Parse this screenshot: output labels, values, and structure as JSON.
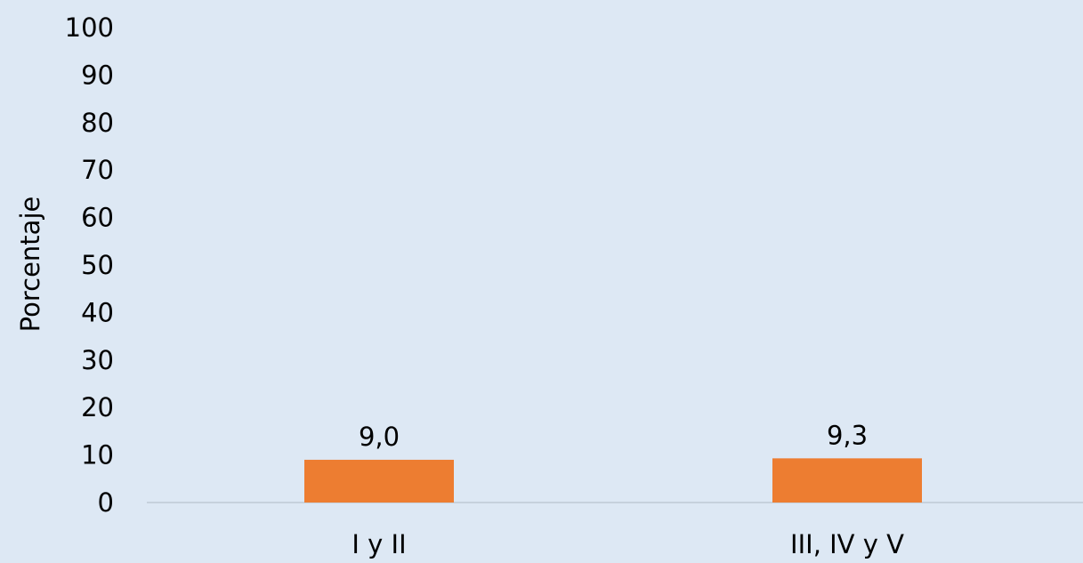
{
  "chart_data": {
    "type": "bar",
    "categories": [
      "I y II",
      "III, IV y V"
    ],
    "values": [
      9.0,
      9.3
    ],
    "value_labels": [
      "9,0",
      "9,3"
    ],
    "ylabel": "Porcentaje",
    "xlabel": "",
    "ylim": [
      0,
      100
    ],
    "y_ticks": [
      "0",
      "10",
      "20",
      "30",
      "40",
      "50",
      "60",
      "70",
      "80",
      "90",
      "100"
    ],
    "grid": false,
    "legend": "none",
    "bar_color": "#ed7d31",
    "axis_line_color": "#bfc9d4",
    "background_color": "#dde8f4"
  }
}
